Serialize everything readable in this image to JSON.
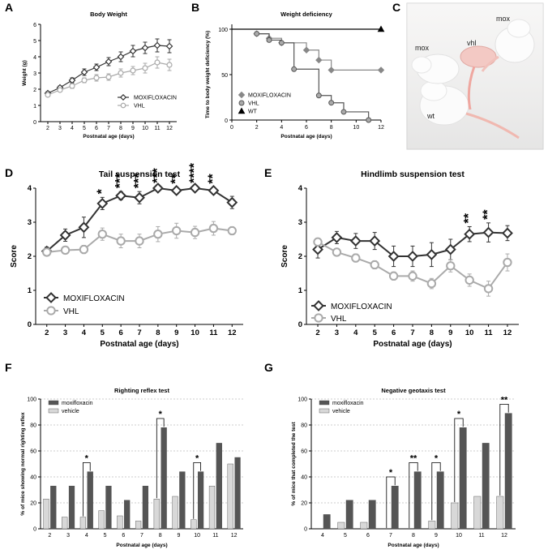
{
  "panels": [
    "A",
    "B",
    "C",
    "D",
    "E",
    "F",
    "G"
  ],
  "photo": {
    "labels": [
      "mox",
      "vhl",
      "mox",
      "wt"
    ]
  },
  "chart_data": [
    {
      "id": "A",
      "type": "line",
      "title": "Body Weight",
      "xlabel": "Postnatal age (days)",
      "ylabel": "Weight (g)",
      "ylim": [
        0,
        6
      ],
      "yticks": [
        0,
        1,
        2,
        3,
        4,
        5,
        6
      ],
      "x": [
        2,
        3,
        4,
        5,
        6,
        7,
        8,
        9,
        10,
        11,
        12
      ],
      "series": [
        {
          "name": "MOXIFLOXACIN",
          "color": "#333333",
          "marker": "diamond",
          "values": [
            1.75,
            2.1,
            2.55,
            3.05,
            3.35,
            3.7,
            4.0,
            4.35,
            4.55,
            4.7,
            4.65
          ],
          "err": [
            0.1,
            0.1,
            0.15,
            0.2,
            0.2,
            0.25,
            0.3,
            0.35,
            0.35,
            0.4,
            0.4
          ]
        },
        {
          "name": "VHL",
          "color": "#aaaaaa",
          "marker": "circle",
          "values": [
            1.65,
            1.95,
            2.2,
            2.55,
            2.7,
            2.75,
            3.0,
            3.15,
            3.3,
            3.65,
            3.5
          ],
          "err": [
            0.1,
            0.1,
            0.15,
            0.15,
            0.2,
            0.2,
            0.25,
            0.25,
            0.3,
            0.35,
            0.35
          ]
        }
      ],
      "legend": "bottom-right"
    },
    {
      "id": "B",
      "type": "line",
      "title": "Weight deficiency",
      "xlabel": "Postnatal age (days)",
      "ylabel": "Time to body weight deficiency (%)",
      "xlim": [
        0,
        12
      ],
      "xticks": [
        0,
        2,
        4,
        6,
        8,
        10,
        12
      ],
      "ylim": [
        0,
        100
      ],
      "yticks": [
        0,
        50,
        100
      ],
      "series": [
        {
          "name": "MOXIFLOXACIN",
          "color": "#888888",
          "marker": "diamond",
          "x": [
            2,
            3,
            4,
            6,
            7,
            8,
            12
          ],
          "values": [
            95,
            90,
            85,
            77,
            66,
            55,
            55
          ]
        },
        {
          "name": "VHL",
          "color": "#555555",
          "marker": "circle",
          "x": [
            2,
            3,
            4,
            5,
            7,
            8,
            9,
            11,
            11
          ],
          "values": [
            95,
            88,
            85,
            56,
            27,
            19,
            9,
            0,
            0
          ]
        },
        {
          "name": "WT",
          "color": "#000000",
          "marker": "triangle",
          "x": [
            0,
            12
          ],
          "values": [
            100,
            100
          ]
        }
      ],
      "legend": "bottom-left"
    },
    {
      "id": "D",
      "type": "line",
      "title": "Tail suspension test",
      "xlabel": "Postnatal age (days)",
      "ylabel": "Score",
      "ylim": [
        0,
        4
      ],
      "yticks": [
        0,
        1,
        2,
        3,
        4
      ],
      "x": [
        2,
        3,
        4,
        5,
        6,
        7,
        8,
        9,
        10,
        11,
        12
      ],
      "series": [
        {
          "name": "MOXIFLOXACIN",
          "color": "#333333",
          "marker": "diamond",
          "values": [
            2.15,
            2.62,
            2.85,
            3.55,
            3.78,
            3.72,
            4.0,
            3.93,
            4.0,
            3.93,
            3.58
          ],
          "err": [
            0.12,
            0.18,
            0.3,
            0.18,
            0.12,
            0.18,
            0.05,
            0.1,
            0.05,
            0.1,
            0.18
          ]
        },
        {
          "name": "VHL",
          "color": "#aaaaaa",
          "marker": "circle",
          "values": [
            2.12,
            2.18,
            2.2,
            2.65,
            2.45,
            2.45,
            2.65,
            2.75,
            2.7,
            2.82,
            2.75
          ],
          "err": [
            0.1,
            0.1,
            0.12,
            0.18,
            0.2,
            0.2,
            0.22,
            0.22,
            0.18,
            0.2,
            0.12
          ]
        }
      ],
      "significance": [
        {
          "x": 5,
          "label": "*"
        },
        {
          "x": 6,
          "label": "***"
        },
        {
          "x": 7,
          "label": "***"
        },
        {
          "x": 8,
          "label": "***"
        },
        {
          "x": 9,
          "label": "**"
        },
        {
          "x": 10,
          "label": "****"
        },
        {
          "x": 11,
          "label": "**"
        }
      ],
      "legend": "bottom-left"
    },
    {
      "id": "E",
      "type": "line",
      "title": "Hindlimb suspension test",
      "xlabel": "Postnatal age (days)",
      "ylabel": "Score",
      "ylim": [
        0,
        4
      ],
      "yticks": [
        0,
        1,
        2,
        3,
        4
      ],
      "x": [
        2,
        3,
        4,
        5,
        6,
        7,
        8,
        9,
        10,
        11,
        12
      ],
      "series": [
        {
          "name": "MOXIFLOXACIN",
          "color": "#333333",
          "marker": "diamond",
          "values": [
            2.2,
            2.55,
            2.45,
            2.45,
            2.0,
            2.0,
            2.05,
            2.2,
            2.65,
            2.7,
            2.68
          ],
          "err": [
            0.25,
            0.18,
            0.22,
            0.25,
            0.3,
            0.3,
            0.35,
            0.3,
            0.22,
            0.28,
            0.22
          ]
        },
        {
          "name": "VHL",
          "color": "#aaaaaa",
          "marker": "circle",
          "values": [
            2.42,
            2.12,
            1.95,
            1.75,
            1.42,
            1.42,
            1.2,
            1.72,
            1.3,
            1.05,
            1.82
          ],
          "err": [
            0.1,
            0.1,
            0.12,
            0.12,
            0.12,
            0.15,
            0.15,
            0.18,
            0.18,
            0.22,
            0.25
          ]
        }
      ],
      "significance": [
        {
          "x": 10,
          "label": "**"
        },
        {
          "x": 11,
          "label": "**"
        }
      ],
      "legend": "bottom-left"
    },
    {
      "id": "F",
      "type": "bar",
      "title": "Righting reflex test",
      "xlabel": "Postnatal age (days)",
      "ylabel": "% of mice showing normal righting reflex",
      "ylim": [
        0,
        100
      ],
      "yticks": [
        0,
        20,
        40,
        60,
        80,
        100
      ],
      "categories": [
        "2",
        "3",
        "4",
        "5",
        "6",
        "7",
        "8",
        "9",
        "10",
        "11",
        "12"
      ],
      "series": [
        {
          "name": "vehicle",
          "color": "#d8d8d8",
          "values": [
            23,
            9,
            9,
            14,
            10,
            6,
            23,
            25,
            7,
            33,
            50
          ]
        },
        {
          "name": "moxifloxacin",
          "color": "#555555",
          "values": [
            33,
            33,
            44,
            33,
            22,
            33,
            78,
            44,
            44,
            66,
            55
          ]
        }
      ],
      "significance": [
        {
          "category": "4",
          "label": "*"
        },
        {
          "category": "8",
          "label": "*"
        },
        {
          "category": "10",
          "label": "*"
        }
      ],
      "legend": "top-left"
    },
    {
      "id": "G",
      "type": "bar",
      "title": "Negative geotaxis test",
      "xlabel": "Postnatal age (days)",
      "ylabel": "% of mice that completed the test",
      "ylim": [
        0,
        100
      ],
      "yticks": [
        0,
        20,
        40,
        60,
        80,
        100
      ],
      "categories": [
        "4",
        "5",
        "6",
        "7",
        "8",
        "9",
        "10",
        "11",
        "12"
      ],
      "series": [
        {
          "name": "vehicle",
          "color": "#d8d8d8",
          "values": [
            0,
            5,
            5,
            0,
            0,
            6,
            20,
            25,
            25
          ]
        },
        {
          "name": "moxifloxacin",
          "color": "#555555",
          "values": [
            11,
            22,
            22,
            33,
            44,
            44,
            78,
            66,
            89
          ]
        }
      ],
      "significance": [
        {
          "category": "7",
          "label": "*"
        },
        {
          "category": "8",
          "label": "**"
        },
        {
          "category": "9",
          "label": "*"
        },
        {
          "category": "10",
          "label": "*"
        },
        {
          "category": "12",
          "label": "**"
        }
      ],
      "legend": "top-left"
    }
  ]
}
